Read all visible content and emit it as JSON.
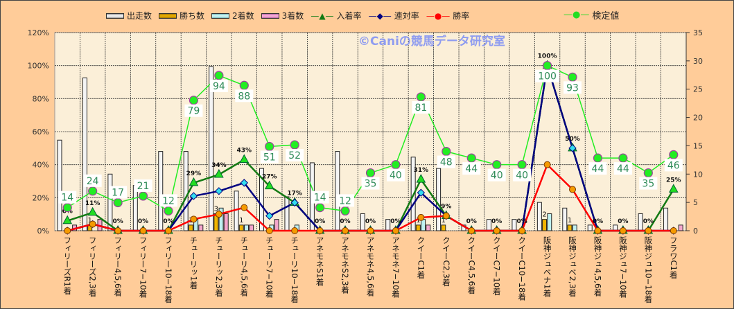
{
  "chart_data": {
    "type": "bar",
    "watermark": "©Caniの競馬データ研究室",
    "categories": [
      "フィリーズR1着",
      "フィリーズ2,3着",
      "フィリー4,5,6着",
      "フィリー7−10着",
      "フィリー10−18着",
      "チューリッ1着",
      "チューリッ2,3着",
      "チューリ4,5,6着",
      "チューリ7−10着",
      "チューリ10−18着",
      "アネモネS1着",
      "アネモネS2,3着",
      "アネモネ4,5,6着",
      "アネモネ7−10着",
      "クイーC1着",
      "クイーC2,3着",
      "クイーC4,5,6着",
      "クイーC7−10着",
      "クイーC10−18着",
      "阪神ジュベナ1着",
      "阪神ジュベ2,3着",
      "阪神ジュ4,5,6着",
      "阪神ジュ7−10着",
      "阪神ジュ10−18着",
      "フラワC1着"
    ],
    "left_axis": {
      "ylim": [
        0,
        120
      ],
      "ticks": [
        "0%",
        "20%",
        "40%",
        "60%",
        "80%",
        "100%",
        "120%"
      ]
    },
    "right_axis": {
      "ylim": [
        0,
        35
      ],
      "ticks": [
        "0",
        "5",
        "10",
        "15",
        "20",
        "25",
        "30",
        "35"
      ]
    },
    "grid": true,
    "legend_position": "top",
    "series": [
      {
        "name": "出走数",
        "type": "bar",
        "axis": "right",
        "color": "#EEEEEE",
        "values": [
          16,
          27,
          10,
          8,
          14,
          14,
          29,
          7,
          11,
          6,
          12,
          14,
          3,
          2,
          13,
          11,
          1,
          2,
          2,
          5,
          4,
          1,
          1,
          3,
          4
        ]
      },
      {
        "name": "勝ち数",
        "type": "bar",
        "axis": "right",
        "color": "#F0B400",
        "values": [
          0,
          1,
          0,
          0,
          0,
          1,
          3,
          1,
          0,
          0,
          0,
          0,
          0,
          0,
          1,
          1,
          0,
          0,
          0,
          2,
          1,
          0,
          0,
          0,
          0
        ]
      },
      {
        "name": "2着数",
        "type": "bar",
        "axis": "right",
        "color": "#AEEAEA",
        "values": [
          0,
          0,
          0,
          0,
          0,
          2,
          4,
          1,
          1,
          1,
          0,
          0,
          0,
          0,
          2,
          0,
          0,
          0,
          0,
          3,
          1,
          0,
          0,
          0,
          0
        ]
      },
      {
        "name": "3着数",
        "type": "bar",
        "axis": "right",
        "color": "#F09CC8",
        "values": [
          1,
          2,
          0,
          0,
          0,
          1,
          3,
          1,
          2,
          0,
          0,
          0,
          0,
          0,
          1,
          0,
          0,
          0,
          0,
          0,
          0,
          0,
          0,
          0,
          1
        ]
      },
      {
        "name": "入着率",
        "type": "line",
        "axis": "left",
        "color": "#137A13",
        "values": [
          6,
          11,
          0,
          0,
          0,
          29,
          34,
          43,
          27,
          17,
          0,
          0,
          0,
          0,
          31,
          9,
          0,
          0,
          0,
          100,
          50,
          0,
          0,
          0,
          25
        ]
      },
      {
        "name": "連対率",
        "type": "line",
        "axis": "left",
        "color": "#000080",
        "values": [
          0,
          4,
          0,
          0,
          0,
          21,
          24,
          29,
          9,
          17,
          0,
          0,
          0,
          0,
          23,
          9,
          0,
          0,
          0,
          100,
          50,
          0,
          0,
          0,
          0
        ]
      },
      {
        "name": "勝率",
        "type": "line",
        "axis": "left",
        "color": "#FF0000",
        "values": [
          0,
          4,
          0,
          0,
          0,
          7,
          10,
          14,
          0,
          0,
          0,
          0,
          0,
          0,
          8,
          9,
          0,
          0,
          0,
          40,
          25,
          0,
          0,
          0,
          0
        ]
      },
      {
        "name": "検定値",
        "type": "line",
        "axis": "left",
        "color": "#22DD22",
        "values": [
          14,
          24,
          17,
          21,
          12,
          79,
          94,
          88,
          51,
          52,
          14,
          12,
          35,
          40,
          81,
          48,
          44,
          40,
          40,
          100,
          93,
          44,
          44,
          35,
          46
        ]
      }
    ]
  }
}
